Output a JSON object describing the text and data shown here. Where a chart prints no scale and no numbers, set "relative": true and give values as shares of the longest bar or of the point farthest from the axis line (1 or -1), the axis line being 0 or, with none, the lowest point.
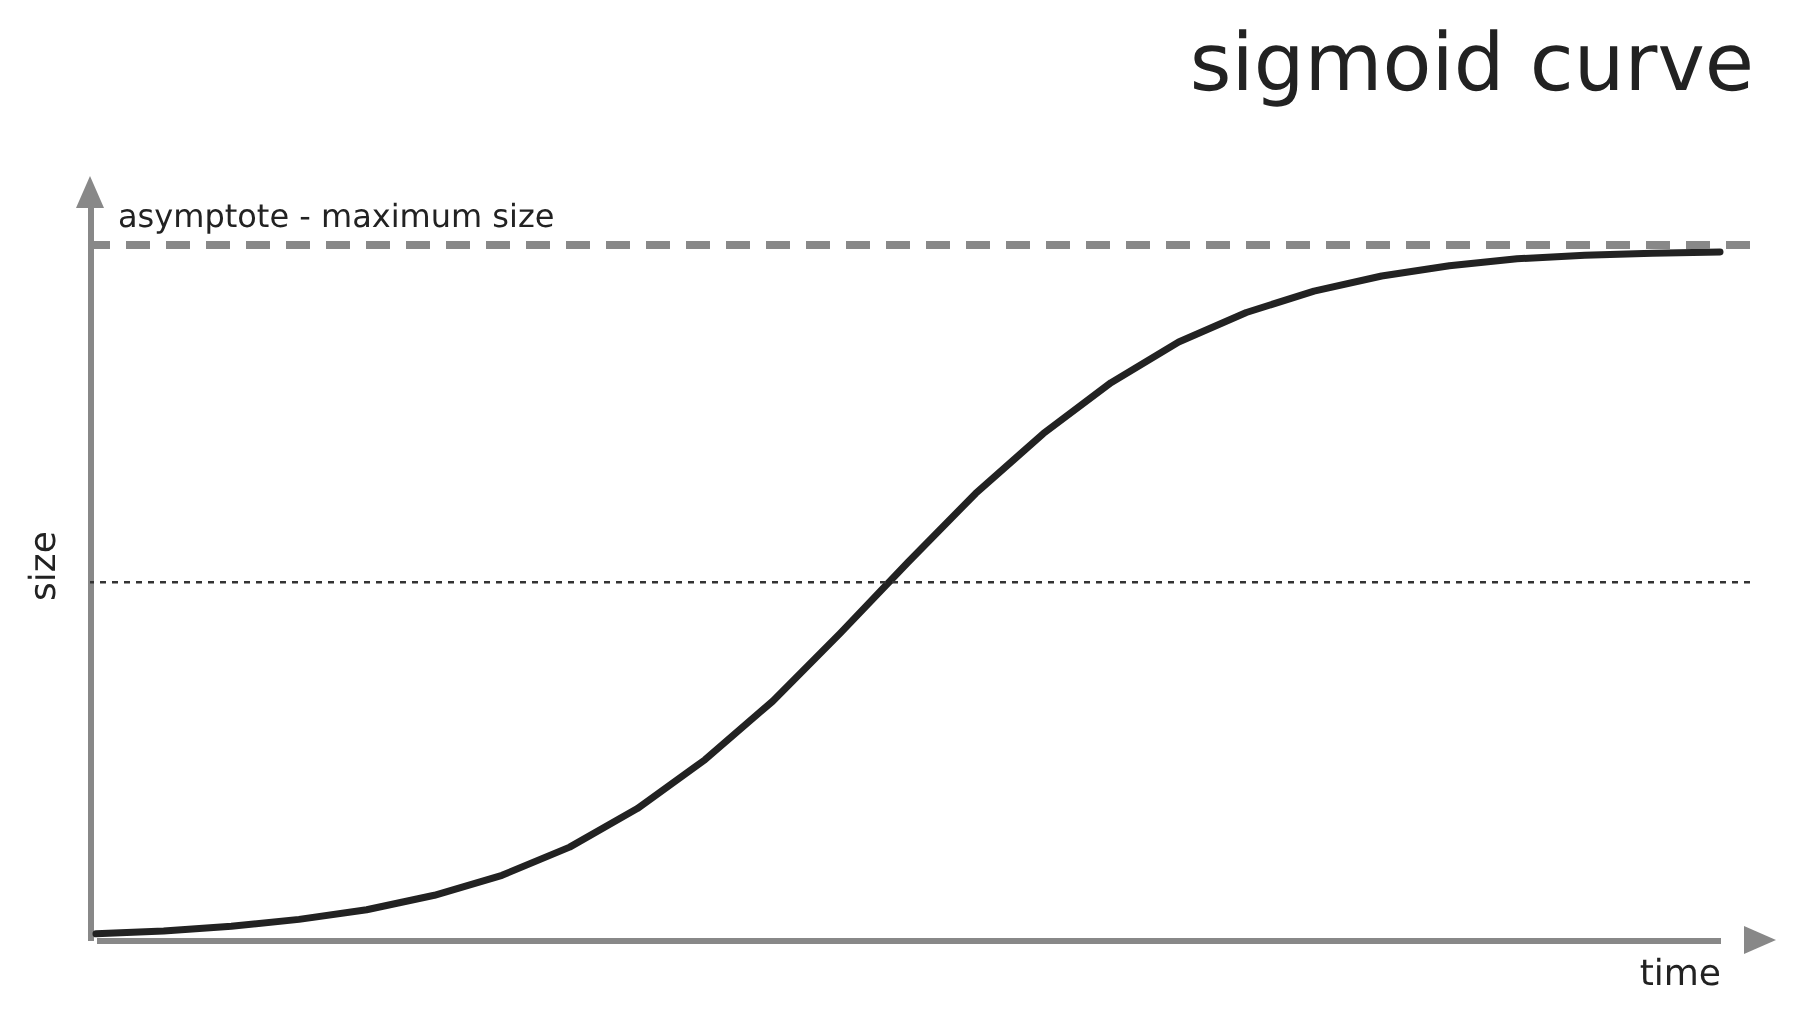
{
  "chart_data": {
    "type": "line",
    "title": "sigmoid curve",
    "xlabel": "time",
    "ylabel": "size",
    "relative": true,
    "categories": [
      null,
      null,
      null,
      null,
      null,
      null,
      null,
      null,
      null,
      null,
      null,
      null,
      null,
      null,
      null,
      null,
      null,
      null,
      null,
      null,
      null,
      null,
      null,
      null,
      null
    ],
    "series": [
      {
        "color": "#222222",
        "values": [
          0.009,
          0.013,
          0.02,
          0.03,
          0.044,
          0.065,
          0.094,
          0.135,
          0.191,
          0.262,
          0.347,
          0.446,
          0.549,
          0.649,
          0.736,
          0.81,
          0.869,
          0.912,
          0.943,
          0.965,
          0.98,
          0.99,
          0.995,
          0.998,
          1
        ]
      }
    ],
    "ref_lines": [
      {
        "axis": "y",
        "value": 1.01,
        "label": "asymptote - maximum size",
        "line_style": "dashed",
        "color": "#888888"
      },
      {
        "axis": "y",
        "value": 0.52,
        "line_style": "dotted",
        "color": "#333333"
      }
    ]
  }
}
